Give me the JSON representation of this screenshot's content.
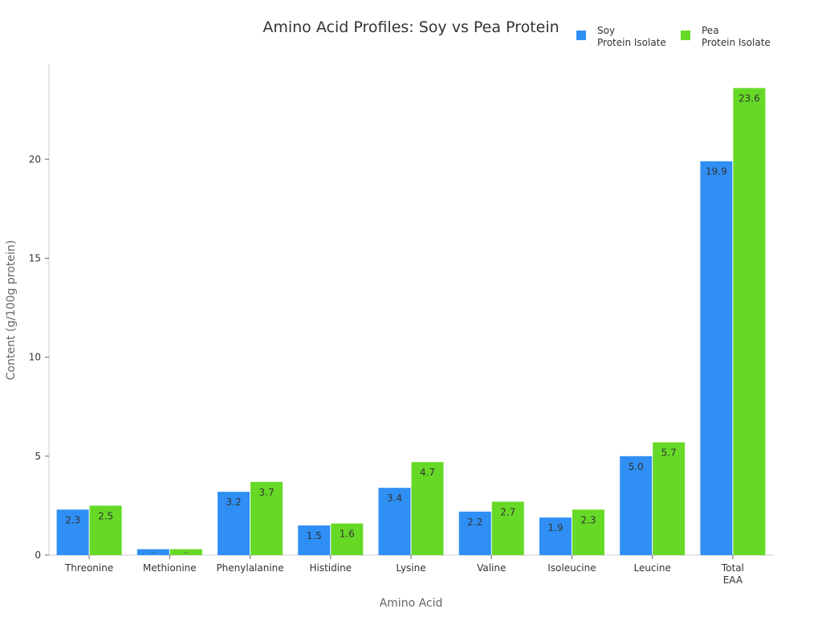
{
  "chart_data": {
    "type": "bar",
    "title": "Amino Acid Profiles: Soy vs Pea Protein",
    "xlabel": "Amino Acid",
    "ylabel": "Content (g/100g protein)",
    "categories": [
      "Threonine",
      "Methionine",
      "Phenylalanine",
      "Histidine",
      "Lysine",
      "Valine",
      "Isoleucine",
      "Leucine",
      "Total\nEAA"
    ],
    "series": [
      {
        "name": "Soy\nProtein Isolate",
        "color": "#2f8ff5",
        "values": [
          2.3,
          0.3,
          3.2,
          1.5,
          3.4,
          2.2,
          1.9,
          5.0,
          19.9
        ]
      },
      {
        "name": "Pea\nProtein Isolate",
        "color": "#66d926",
        "values": [
          2.5,
          0.3,
          3.7,
          1.6,
          4.7,
          2.7,
          2.3,
          5.7,
          23.6
        ]
      }
    ],
    "yticks": [
      0,
      5,
      10,
      15,
      20
    ],
    "ylim": [
      0,
      24.8
    ],
    "grid": false,
    "legend": "top-right"
  }
}
